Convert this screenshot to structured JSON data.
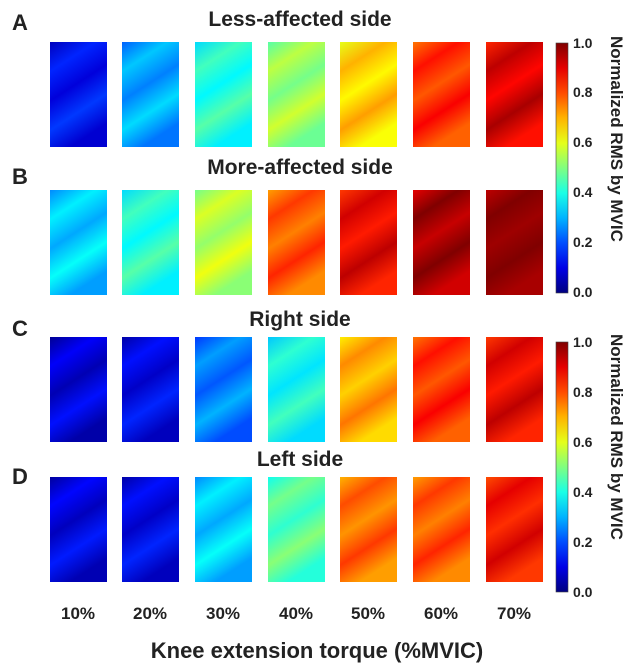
{
  "chart_data": {
    "type": "heatmap",
    "xlabel": "Knee extension torque (%MVIC)",
    "categories": [
      "10%",
      "20%",
      "30%",
      "40%",
      "50%",
      "60%",
      "70%"
    ],
    "colorbar": {
      "label": "Normalized RMS by MVIC",
      "ticks": [
        "1.0",
        "0.8",
        "0.6",
        "0.4",
        "0.2",
        "0.0"
      ],
      "range": [
        0.0,
        1.0
      ],
      "colormap": "jet"
    },
    "panels": [
      {
        "letter": "A",
        "title": "Less-affected side",
        "values": [
          0.12,
          0.28,
          0.4,
          0.52,
          0.66,
          0.82,
          0.9
        ]
      },
      {
        "letter": "B",
        "title": "More-affected side",
        "values": [
          0.32,
          0.4,
          0.55,
          0.78,
          0.88,
          0.96,
          1.0
        ]
      },
      {
        "letter": "C",
        "title": "Right side",
        "values": [
          0.08,
          0.1,
          0.24,
          0.38,
          0.7,
          0.82,
          0.88
        ]
      },
      {
        "letter": "D",
        "title": "Left side",
        "values": [
          0.09,
          0.1,
          0.32,
          0.45,
          0.76,
          0.78,
          0.86
        ]
      }
    ]
  }
}
